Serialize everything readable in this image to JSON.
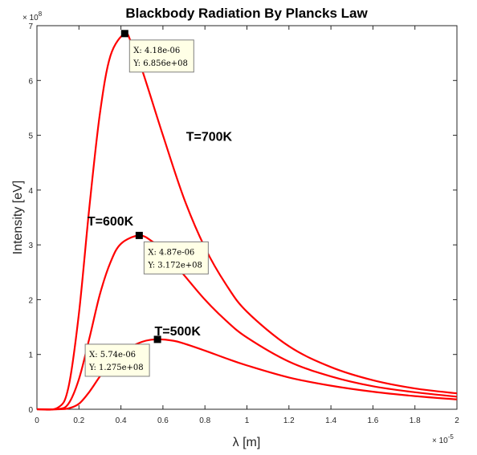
{
  "chart_data": {
    "type": "line",
    "title": "Blackbody Radiation By Plancks Law",
    "xlabel": "λ [m]",
    "ylabel": "Intensity [eV]",
    "x_exponent": {
      "base": "× 10",
      "power": "-5"
    },
    "y_exponent": {
      "base": "× 10",
      "power": "8"
    },
    "xlim": [
      0,
      2e-05
    ],
    "ylim": [
      0,
      700000000
    ],
    "x_ticks": [
      0,
      2e-06,
      4e-06,
      6e-06,
      8e-06,
      1e-05,
      1.2e-05,
      1.4e-05,
      1.6e-05,
      1.8e-05,
      2e-05
    ],
    "x_tick_labels": [
      "0",
      "0.2",
      "0.4",
      "0.6",
      "0.8",
      "1",
      "1.2",
      "1.4",
      "1.6",
      "1.8",
      "2"
    ],
    "y_ticks": [
      0,
      100000000,
      200000000,
      300000000,
      400000000,
      500000000,
      600000000,
      700000000
    ],
    "y_tick_labels": [
      "0",
      "1",
      "2",
      "3",
      "4",
      "5",
      "6",
      "7"
    ],
    "grid": false,
    "line_color": "#ff0000",
    "series": [
      {
        "label": "T=700K",
        "x": [
          0,
          1e-06,
          1.5e-06,
          2e-06,
          2.5e-06,
          3e-06,
          3.5e-06,
          4.18e-06,
          4.5e-06,
          5e-06,
          6e-06,
          7e-06,
          8e-06,
          9e-06,
          1e-05,
          1.2e-05,
          1.4e-05,
          1.6e-05,
          1.8e-05,
          2e-05
        ],
        "y": [
          0,
          3000000,
          40000000,
          175000000,
          370000000,
          540000000,
          645000000,
          685600000,
          668000000,
          620000000,
          500000000,
          385000000,
          295000000,
          228000000,
          178000000,
          115000000,
          77000000,
          53000000,
          38000000,
          29000000
        ]
      },
      {
        "label": "T=600K",
        "x": [
          0,
          1e-06,
          1.5e-06,
          2e-06,
          2.5e-06,
          3e-06,
          3.5e-06,
          4e-06,
          4.87e-06,
          5.5e-06,
          6e-06,
          7e-06,
          8e-06,
          9e-06,
          1e-05,
          1.2e-05,
          1.4e-05,
          1.6e-05,
          1.8e-05,
          2e-05
        ],
        "y": [
          0,
          400000,
          10000000,
          55000000,
          130000000,
          210000000,
          268000000,
          302000000,
          317200000,
          306000000,
          290000000,
          245000000,
          200000000,
          162000000,
          131000000,
          87000000,
          60000000,
          42000000,
          31000000,
          23000000
        ]
      },
      {
        "label": "T=500K",
        "x": [
          0,
          1e-06,
          1.5e-06,
          2e-06,
          2.5e-06,
          3e-06,
          3.5e-06,
          4e-06,
          5e-06,
          5.74e-06,
          6.5e-06,
          7e-06,
          8e-06,
          9e-06,
          1e-05,
          1.2e-05,
          1.4e-05,
          1.6e-05,
          1.8e-05,
          2e-05
        ],
        "y": [
          0,
          0,
          1500000,
          10000000,
          32000000,
          60000000,
          85000000,
          104000000,
          123000000,
          127500000,
          125000000,
          120000000,
          107000000,
          93000000,
          80000000,
          58000000,
          43000000,
          32000000,
          24000000,
          18000000
        ]
      }
    ],
    "curve_labels": [
      {
        "text": "T=700K",
        "x": 8.2e-06,
        "y": 490000000
      },
      {
        "text": "T=600K",
        "x": 3.5e-06,
        "y": 335000000
      },
      {
        "text": "T=500K",
        "x": 6.7e-06,
        "y": 135000000
      }
    ],
    "datatips": [
      {
        "x": 4.18e-06,
        "y": 685600000,
        "x_text": "X: 4.18e-06",
        "y_text": "Y: 6.856e+08",
        "anchor": "below-right"
      },
      {
        "x": 4.87e-06,
        "y": 317200000,
        "x_text": "X: 4.87e-06",
        "y_text": "Y: 3.172e+08",
        "anchor": "below-right"
      },
      {
        "x": 5.74e-06,
        "y": 127500000,
        "x_text": "X: 5.74e-06",
        "y_text": "Y: 1.275e+08",
        "anchor": "left"
      }
    ]
  }
}
